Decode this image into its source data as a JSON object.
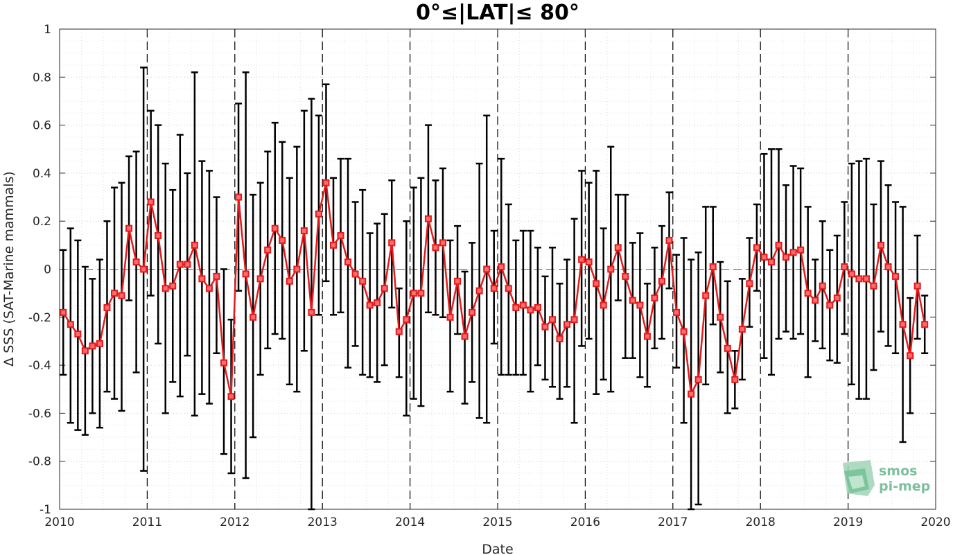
{
  "chart_data": {
    "type": "line",
    "title": "0°≤|LAT|≤ 80°",
    "xlabel": "Date",
    "ylabel": "Δ SSS (SAT-Marine mammals)",
    "xlim": [
      2010,
      2020
    ],
    "ylim": [
      -1,
      1
    ],
    "x_ticks": [
      "2010",
      "2011",
      "2012",
      "2013",
      "2014",
      "2015",
      "2016",
      "2017",
      "2018",
      "2019",
      "2020"
    ],
    "y_ticks": [
      "1",
      "0.8",
      "0.6",
      "0.4",
      "0.2",
      "0",
      "-0.2",
      "-0.4",
      "-0.6",
      "-0.8",
      "-1"
    ],
    "grid": "dotted minor and major",
    "year_separators": "dashed vertical lines at each year",
    "zero_line": "dashed horizontal line at 0",
    "series": [
      {
        "marker": "square",
        "color": "#e41a1c",
        "error_color": "#000000",
        "points": [
          {
            "x": "2010-01",
            "y": -0.18,
            "lo": -0.44,
            "hi": 0.08
          },
          {
            "x": "2010-02",
            "y": -0.23,
            "lo": -0.64,
            "hi": 0.17
          },
          {
            "x": "2010-03",
            "y": -0.27,
            "lo": -0.67,
            "hi": 0.12
          },
          {
            "x": "2010-04",
            "y": -0.34,
            "lo": -0.69,
            "hi": 0.01
          },
          {
            "x": "2010-05",
            "y": -0.32,
            "lo": -0.6,
            "hi": -0.04
          },
          {
            "x": "2010-06",
            "y": -0.31,
            "lo": -0.66,
            "hi": 0.04
          },
          {
            "x": "2010-07",
            "y": -0.16,
            "lo": -0.51,
            "hi": 0.2
          },
          {
            "x": "2010-08",
            "y": -0.1,
            "lo": -0.54,
            "hi": 0.34
          },
          {
            "x": "2010-09",
            "y": -0.11,
            "lo": -0.59,
            "hi": 0.36
          },
          {
            "x": "2010-10",
            "y": 0.17,
            "lo": -0.13,
            "hi": 0.47
          },
          {
            "x": "2010-11",
            "y": 0.03,
            "lo": -0.43,
            "hi": 0.49
          },
          {
            "x": "2010-12",
            "y": 0.0,
            "lo": -0.84,
            "hi": 0.84
          },
          {
            "x": "2011-01",
            "y": 0.28,
            "lo": -0.11,
            "hi": 0.66
          },
          {
            "x": "2011-02",
            "y": 0.14,
            "lo": -0.31,
            "hi": 0.6
          },
          {
            "x": "2011-03",
            "y": -0.08,
            "lo": -0.6,
            "hi": 0.44
          },
          {
            "x": "2011-04",
            "y": -0.07,
            "lo": -0.47,
            "hi": 0.33
          },
          {
            "x": "2011-05",
            "y": 0.02,
            "lo": -0.53,
            "hi": 0.56
          },
          {
            "x": "2011-06",
            "y": 0.02,
            "lo": -0.36,
            "hi": 0.4
          },
          {
            "x": "2011-07",
            "y": 0.1,
            "lo": -0.61,
            "hi": 0.82
          },
          {
            "x": "2011-08",
            "y": -0.04,
            "lo": -0.52,
            "hi": 0.45
          },
          {
            "x": "2011-09",
            "y": -0.08,
            "lo": -0.56,
            "hi": 0.41
          },
          {
            "x": "2011-10",
            "y": -0.03,
            "lo": -0.35,
            "hi": 0.3
          },
          {
            "x": "2011-11",
            "y": -0.39,
            "lo": -0.77,
            "hi": 0.0
          },
          {
            "x": "2011-12",
            "y": -0.53,
            "lo": -0.85,
            "hi": -0.21
          },
          {
            "x": "2012-01",
            "y": 0.3,
            "lo": -0.09,
            "hi": 0.69
          },
          {
            "x": "2012-02",
            "y": -0.02,
            "lo": -0.87,
            "hi": 0.82
          },
          {
            "x": "2012-03",
            "y": -0.2,
            "lo": -0.7,
            "hi": 0.31
          },
          {
            "x": "2012-04",
            "y": -0.04,
            "lo": -0.44,
            "hi": 0.36
          },
          {
            "x": "2012-05",
            "y": 0.08,
            "lo": -0.33,
            "hi": 0.49
          },
          {
            "x": "2012-06",
            "y": 0.17,
            "lo": -0.27,
            "hi": 0.61
          },
          {
            "x": "2012-07",
            "y": 0.12,
            "lo": -0.29,
            "hi": 0.53
          },
          {
            "x": "2012-08",
            "y": -0.05,
            "lo": -0.48,
            "hi": 0.38
          },
          {
            "x": "2012-09",
            "y": 0.0,
            "lo": -0.51,
            "hi": 0.51
          },
          {
            "x": "2012-10",
            "y": 0.16,
            "lo": -0.34,
            "hi": 0.66
          },
          {
            "x": "2012-11",
            "y": -0.18,
            "lo": -1.0,
            "hi": 0.71
          },
          {
            "x": "2012-12",
            "y": 0.23,
            "lo": -0.19,
            "hi": 0.64
          },
          {
            "x": "2013-01",
            "y": 0.36,
            "lo": -0.05,
            "hi": 0.77
          },
          {
            "x": "2013-02",
            "y": 0.1,
            "lo": -0.19,
            "hi": 0.38
          },
          {
            "x": "2013-03",
            "y": 0.14,
            "lo": -0.18,
            "hi": 0.46
          },
          {
            "x": "2013-04",
            "y": 0.03,
            "lo": -0.41,
            "hi": 0.46
          },
          {
            "x": "2013-05",
            "y": -0.02,
            "lo": -0.32,
            "hi": 0.28
          },
          {
            "x": "2013-06",
            "y": -0.05,
            "lo": -0.44,
            "hi": 0.33
          },
          {
            "x": "2013-07",
            "y": -0.15,
            "lo": -0.45,
            "hi": 0.15
          },
          {
            "x": "2013-08",
            "y": -0.14,
            "lo": -0.47,
            "hi": 0.19
          },
          {
            "x": "2013-09",
            "y": -0.08,
            "lo": -0.4,
            "hi": 0.23
          },
          {
            "x": "2013-10",
            "y": 0.11,
            "lo": -0.16,
            "hi": 0.37
          },
          {
            "x": "2013-11",
            "y": -0.26,
            "lo": -0.45,
            "hi": -0.08
          },
          {
            "x": "2013-12",
            "y": -0.21,
            "lo": -0.61,
            "hi": 0.2
          },
          {
            "x": "2014-01",
            "y": -0.1,
            "lo": -0.54,
            "hi": 0.34
          },
          {
            "x": "2014-02",
            "y": -0.1,
            "lo": -0.57,
            "hi": 0.38
          },
          {
            "x": "2014-03",
            "y": 0.21,
            "lo": -0.18,
            "hi": 0.6
          },
          {
            "x": "2014-04",
            "y": 0.09,
            "lo": -0.19,
            "hi": 0.37
          },
          {
            "x": "2014-05",
            "y": 0.11,
            "lo": -0.2,
            "hi": 0.42
          },
          {
            "x": "2014-06",
            "y": -0.2,
            "lo": -0.51,
            "hi": 0.12
          },
          {
            "x": "2014-07",
            "y": -0.05,
            "lo": -0.27,
            "hi": 0.18
          },
          {
            "x": "2014-08",
            "y": -0.28,
            "lo": -0.56,
            "hi": -0.01
          },
          {
            "x": "2014-09",
            "y": -0.18,
            "lo": -0.47,
            "hi": 0.11
          },
          {
            "x": "2014-10",
            "y": -0.09,
            "lo": -0.62,
            "hi": 0.44
          },
          {
            "x": "2014-11",
            "y": 0.0,
            "lo": -0.64,
            "hi": 0.64
          },
          {
            "x": "2014-12",
            "y": -0.08,
            "lo": -0.31,
            "hi": 0.16
          },
          {
            "x": "2015-01",
            "y": 0.01,
            "lo": -0.44,
            "hi": 0.46
          },
          {
            "x": "2015-02",
            "y": -0.08,
            "lo": -0.44,
            "hi": 0.27
          },
          {
            "x": "2015-03",
            "y": -0.16,
            "lo": -0.44,
            "hi": 0.12
          },
          {
            "x": "2015-04",
            "y": -0.15,
            "lo": -0.44,
            "hi": 0.16
          },
          {
            "x": "2015-05",
            "y": -0.17,
            "lo": -0.51,
            "hi": 0.16
          },
          {
            "x": "2015-06",
            "y": -0.16,
            "lo": -0.4,
            "hi": 0.09
          },
          {
            "x": "2015-07",
            "y": -0.24,
            "lo": -0.46,
            "hi": -0.03
          },
          {
            "x": "2015-08",
            "y": -0.21,
            "lo": -0.49,
            "hi": 0.09
          },
          {
            "x": "2015-09",
            "y": -0.29,
            "lo": -0.54,
            "hi": -0.06
          },
          {
            "x": "2015-10",
            "y": -0.23,
            "lo": -0.49,
            "hi": 0.04
          },
          {
            "x": "2015-11",
            "y": -0.21,
            "lo": -0.64,
            "hi": 0.21
          },
          {
            "x": "2015-12",
            "y": 0.04,
            "lo": -0.32,
            "hi": 0.41
          },
          {
            "x": "2016-01",
            "y": 0.03,
            "lo": -0.29,
            "hi": 0.36
          },
          {
            "x": "2016-02",
            "y": -0.06,
            "lo": -0.52,
            "hi": 0.41
          },
          {
            "x": "2016-03",
            "y": -0.15,
            "lo": -0.46,
            "hi": 0.17
          },
          {
            "x": "2016-04",
            "y": 0.0,
            "lo": -0.51,
            "hi": 0.51
          },
          {
            "x": "2016-05",
            "y": 0.09,
            "lo": -0.13,
            "hi": 0.31
          },
          {
            "x": "2016-06",
            "y": -0.03,
            "lo": -0.37,
            "hi": 0.31
          },
          {
            "x": "2016-07",
            "y": -0.13,
            "lo": -0.37,
            "hi": 0.11
          },
          {
            "x": "2016-08",
            "y": -0.15,
            "lo": -0.45,
            "hi": 0.15
          },
          {
            "x": "2016-09",
            "y": -0.28,
            "lo": -0.49,
            "hi": -0.06
          },
          {
            "x": "2016-10",
            "y": -0.12,
            "lo": -0.33,
            "hi": 0.09
          },
          {
            "x": "2016-11",
            "y": -0.05,
            "lo": -0.29,
            "hi": 0.18
          },
          {
            "x": "2016-12",
            "y": 0.12,
            "lo": -0.08,
            "hi": 0.32
          },
          {
            "x": "2017-01",
            "y": -0.18,
            "lo": -0.41,
            "hi": 0.06
          },
          {
            "x": "2017-02",
            "y": -0.26,
            "lo": -0.64,
            "hi": 0.13
          },
          {
            "x": "2017-03",
            "y": -0.52,
            "lo": -1.0,
            "hi": 0.04
          },
          {
            "x": "2017-04",
            "y": -0.46,
            "lo": -0.98,
            "hi": 0.07
          },
          {
            "x": "2017-05",
            "y": -0.11,
            "lo": -0.48,
            "hi": 0.26
          },
          {
            "x": "2017-06",
            "y": 0.01,
            "lo": -0.23,
            "hi": 0.26
          },
          {
            "x": "2017-07",
            "y": -0.2,
            "lo": -0.43,
            "hi": 0.03
          },
          {
            "x": "2017-08",
            "y": -0.33,
            "lo": -0.6,
            "hi": -0.05
          },
          {
            "x": "2017-09",
            "y": -0.46,
            "lo": -0.58,
            "hi": -0.34
          },
          {
            "x": "2017-10",
            "y": -0.25,
            "lo": -0.46,
            "hi": -0.04
          },
          {
            "x": "2017-11",
            "y": -0.06,
            "lo": -0.24,
            "hi": 0.13
          },
          {
            "x": "2017-12",
            "y": 0.09,
            "lo": -0.09,
            "hi": 0.27
          },
          {
            "x": "2018-01",
            "y": 0.05,
            "lo": -0.37,
            "hi": 0.48
          },
          {
            "x": "2018-02",
            "y": 0.03,
            "lo": -0.44,
            "hi": 0.5
          },
          {
            "x": "2018-03",
            "y": 0.1,
            "lo": -0.29,
            "hi": 0.5
          },
          {
            "x": "2018-04",
            "y": 0.05,
            "lo": -0.26,
            "hi": 0.35
          },
          {
            "x": "2018-05",
            "y": 0.07,
            "lo": -0.29,
            "hi": 0.43
          },
          {
            "x": "2018-06",
            "y": 0.08,
            "lo": -0.27,
            "hi": 0.42
          },
          {
            "x": "2018-07",
            "y": -0.1,
            "lo": -0.45,
            "hi": 0.26
          },
          {
            "x": "2018-08",
            "y": -0.13,
            "lo": -0.3,
            "hi": 0.04
          },
          {
            "x": "2018-09",
            "y": -0.07,
            "lo": -0.33,
            "hi": 0.2
          },
          {
            "x": "2018-10",
            "y": -0.15,
            "lo": -0.38,
            "hi": 0.08
          },
          {
            "x": "2018-11",
            "y": -0.12,
            "lo": -0.39,
            "hi": 0.14
          },
          {
            "x": "2018-12",
            "y": 0.01,
            "lo": -0.27,
            "hi": 0.28
          },
          {
            "x": "2019-01",
            "y": -0.02,
            "lo": -0.48,
            "hi": 0.44
          },
          {
            "x": "2019-02",
            "y": -0.04,
            "lo": -0.54,
            "hi": 0.45
          },
          {
            "x": "2019-03",
            "y": -0.04,
            "lo": -0.54,
            "hi": 0.46
          },
          {
            "x": "2019-04",
            "y": -0.07,
            "lo": -0.42,
            "hi": 0.27
          },
          {
            "x": "2019-05",
            "y": 0.1,
            "lo": -0.26,
            "hi": 0.45
          },
          {
            "x": "2019-06",
            "y": 0.01,
            "lo": -0.32,
            "hi": 0.35
          },
          {
            "x": "2019-07",
            "y": -0.03,
            "lo": -0.35,
            "hi": 0.28
          },
          {
            "x": "2019-08",
            "y": -0.23,
            "lo": -0.72,
            "hi": 0.26
          },
          {
            "x": "2019-09",
            "y": -0.36,
            "lo": -0.6,
            "hi": -0.12
          },
          {
            "x": "2019-10",
            "y": -0.07,
            "lo": -0.29,
            "hi": 0.14
          },
          {
            "x": "2019-11",
            "y": -0.23,
            "lo": -0.35,
            "hi": -0.11
          }
        ]
      }
    ]
  },
  "logo": {
    "line1": "smos",
    "line2": "pi-mep",
    "icon": "smos-pi-mep-logo-icon"
  }
}
